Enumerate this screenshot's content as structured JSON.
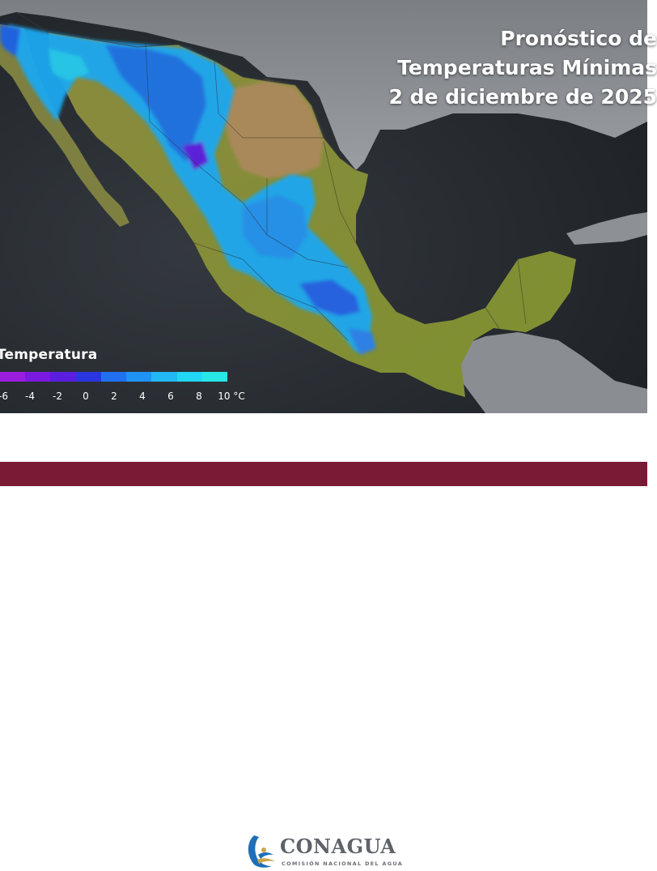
{
  "title": {
    "line1": "Pronóstico de",
    "line2": "Temperaturas Mínimas",
    "line3": "2 de diciembre de 2025"
  },
  "legend": {
    "title": "Temperatura",
    "colors": [
      "#9b1ee0",
      "#7a1ae0",
      "#5a1ee0",
      "#2a36e0",
      "#2070f0",
      "#1f93f5",
      "#22b8f5",
      "#22d6f5",
      "#27e6e6"
    ],
    "labels": [
      "-6",
      "-4",
      "-2",
      "0",
      "2",
      "4",
      "6",
      "8",
      "10 °C"
    ]
  },
  "brand": {
    "name": "CONAGUA",
    "subtitle": "COMISIÓN NACIONAL DEL AGUA",
    "accent_color": "#7a1a35"
  },
  "map": {
    "region": "Mexico",
    "water_color": "#2a2e33",
    "land_neighbor_color": "#8a8a8a"
  }
}
